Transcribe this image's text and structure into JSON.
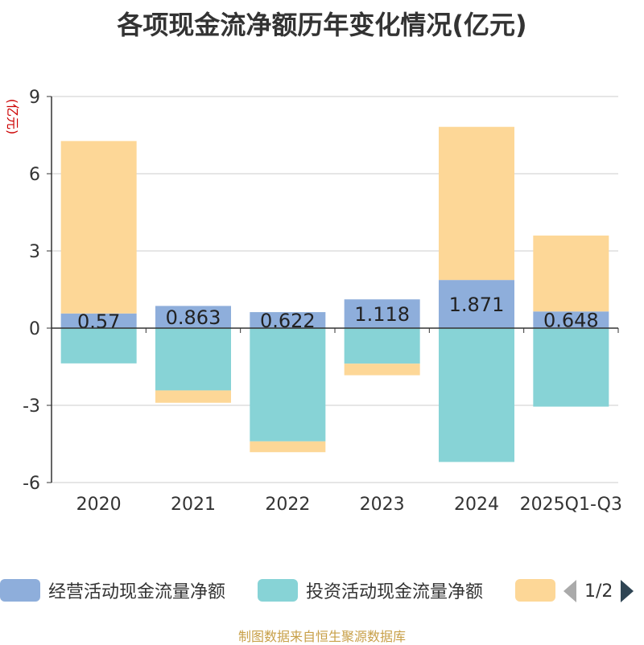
{
  "title": "各项现金流净额历年变化情况(亿元)",
  "source": "制图数据来自恒生聚源数据库",
  "legend": {
    "items": [
      {
        "label": "经营活动现金流量净额",
        "color": "#8eaedb"
      },
      {
        "label": "投资活动现金流量净额",
        "color": "#87d3d6"
      },
      {
        "label": "",
        "color": "#fdd797"
      }
    ],
    "page": "1/2"
  },
  "chart_data": {
    "type": "bar",
    "stacked": true,
    "title": "各项现金流净额历年变化情况(亿元)",
    "ylabel": "(亿元)",
    "xlabel": "",
    "ylim": [
      -6,
      9
    ],
    "yticks": [
      -6,
      -3,
      0,
      3,
      6,
      9
    ],
    "grid": true,
    "categories": [
      "2020",
      "2021",
      "2022",
      "2023",
      "2024",
      "2025Q1-Q3"
    ],
    "series": [
      {
        "name": "经营活动现金流量净额",
        "color": "#8eaedb",
        "values": [
          0.57,
          0.863,
          0.622,
          1.118,
          1.871,
          0.648
        ],
        "labels": [
          "0.57",
          "0.863",
          "0.622",
          "1.118",
          "1.871",
          "0.648"
        ]
      },
      {
        "name": "投资活动现金流量净额",
        "color": "#87d3d6",
        "values": [
          -1.37,
          -2.42,
          -4.4,
          -1.38,
          -5.2,
          -3.05
        ]
      },
      {
        "name": "",
        "color": "#fdd797",
        "values": [
          6.7,
          -0.48,
          -0.42,
          -0.45,
          5.95,
          2.95
        ]
      }
    ]
  }
}
